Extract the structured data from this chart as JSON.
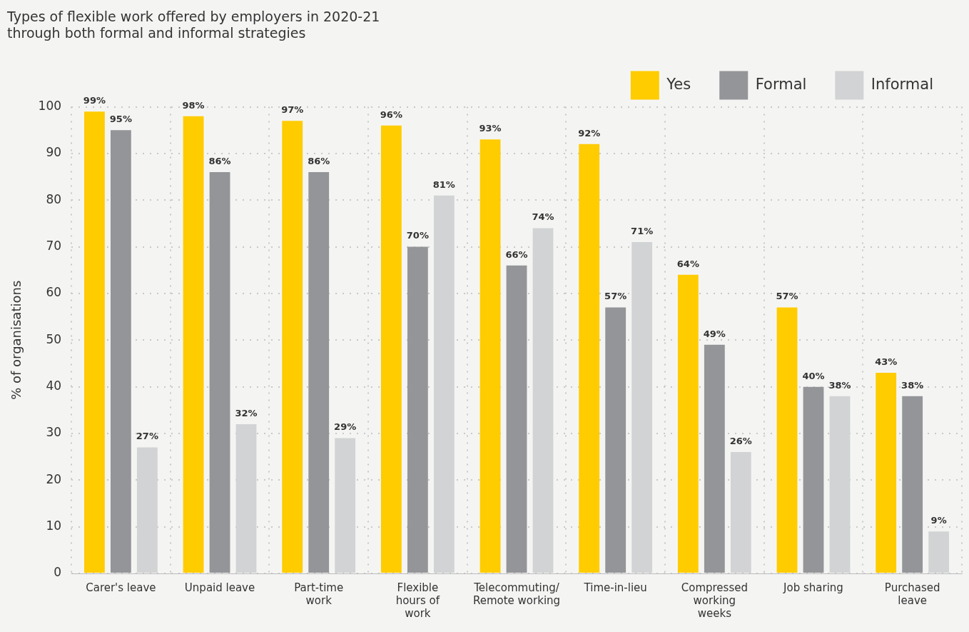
{
  "chart_data": {
    "type": "bar",
    "title": "Types of flexible work offered by employers in 2020-21\nthrough both formal and informal strategies",
    "ylabel": "% of organisations",
    "categories": [
      "Carer's leave",
      "Unpaid leave",
      "Part-time\nwork",
      "Flexible\nhours of\nwork",
      "Telecommuting/\nRemote working",
      "Time-in-lieu",
      "Compressed\nworking\nweeks",
      "Job sharing",
      "Purchased\nleave"
    ],
    "series": [
      {
        "name": "Yes",
        "color": "#ffcc00",
        "values": [
          99,
          98,
          97,
          96,
          93,
          92,
          64,
          57,
          43
        ],
        "value_labels": [
          "99%",
          "98%",
          "97%",
          "96%",
          "93%",
          "92%",
          "64%",
          "57%",
          "43%"
        ]
      },
      {
        "name": "Formal",
        "color": "#939598",
        "values": [
          95,
          86,
          86,
          70,
          66,
          57,
          49,
          40,
          38
        ],
        "value_labels": [
          "95%",
          "86%",
          "86%",
          "70%",
          "66%",
          "57%",
          "49%",
          "40%",
          "38%"
        ]
      },
      {
        "name": "Informal",
        "color": "#d1d3d4",
        "values": [
          27,
          32,
          29,
          81,
          74,
          71,
          26,
          38,
          9
        ],
        "value_labels": [
          "27%",
          "32%",
          "29%",
          "81%",
          "74%",
          "71%",
          "26%",
          "38%",
          "9%"
        ]
      }
    ],
    "ylim": [
      0,
      100
    ],
    "yticks": [
      0,
      10,
      20,
      30,
      40,
      50,
      60,
      70,
      80,
      90,
      100
    ],
    "grid": true,
    "legend": "top right"
  }
}
